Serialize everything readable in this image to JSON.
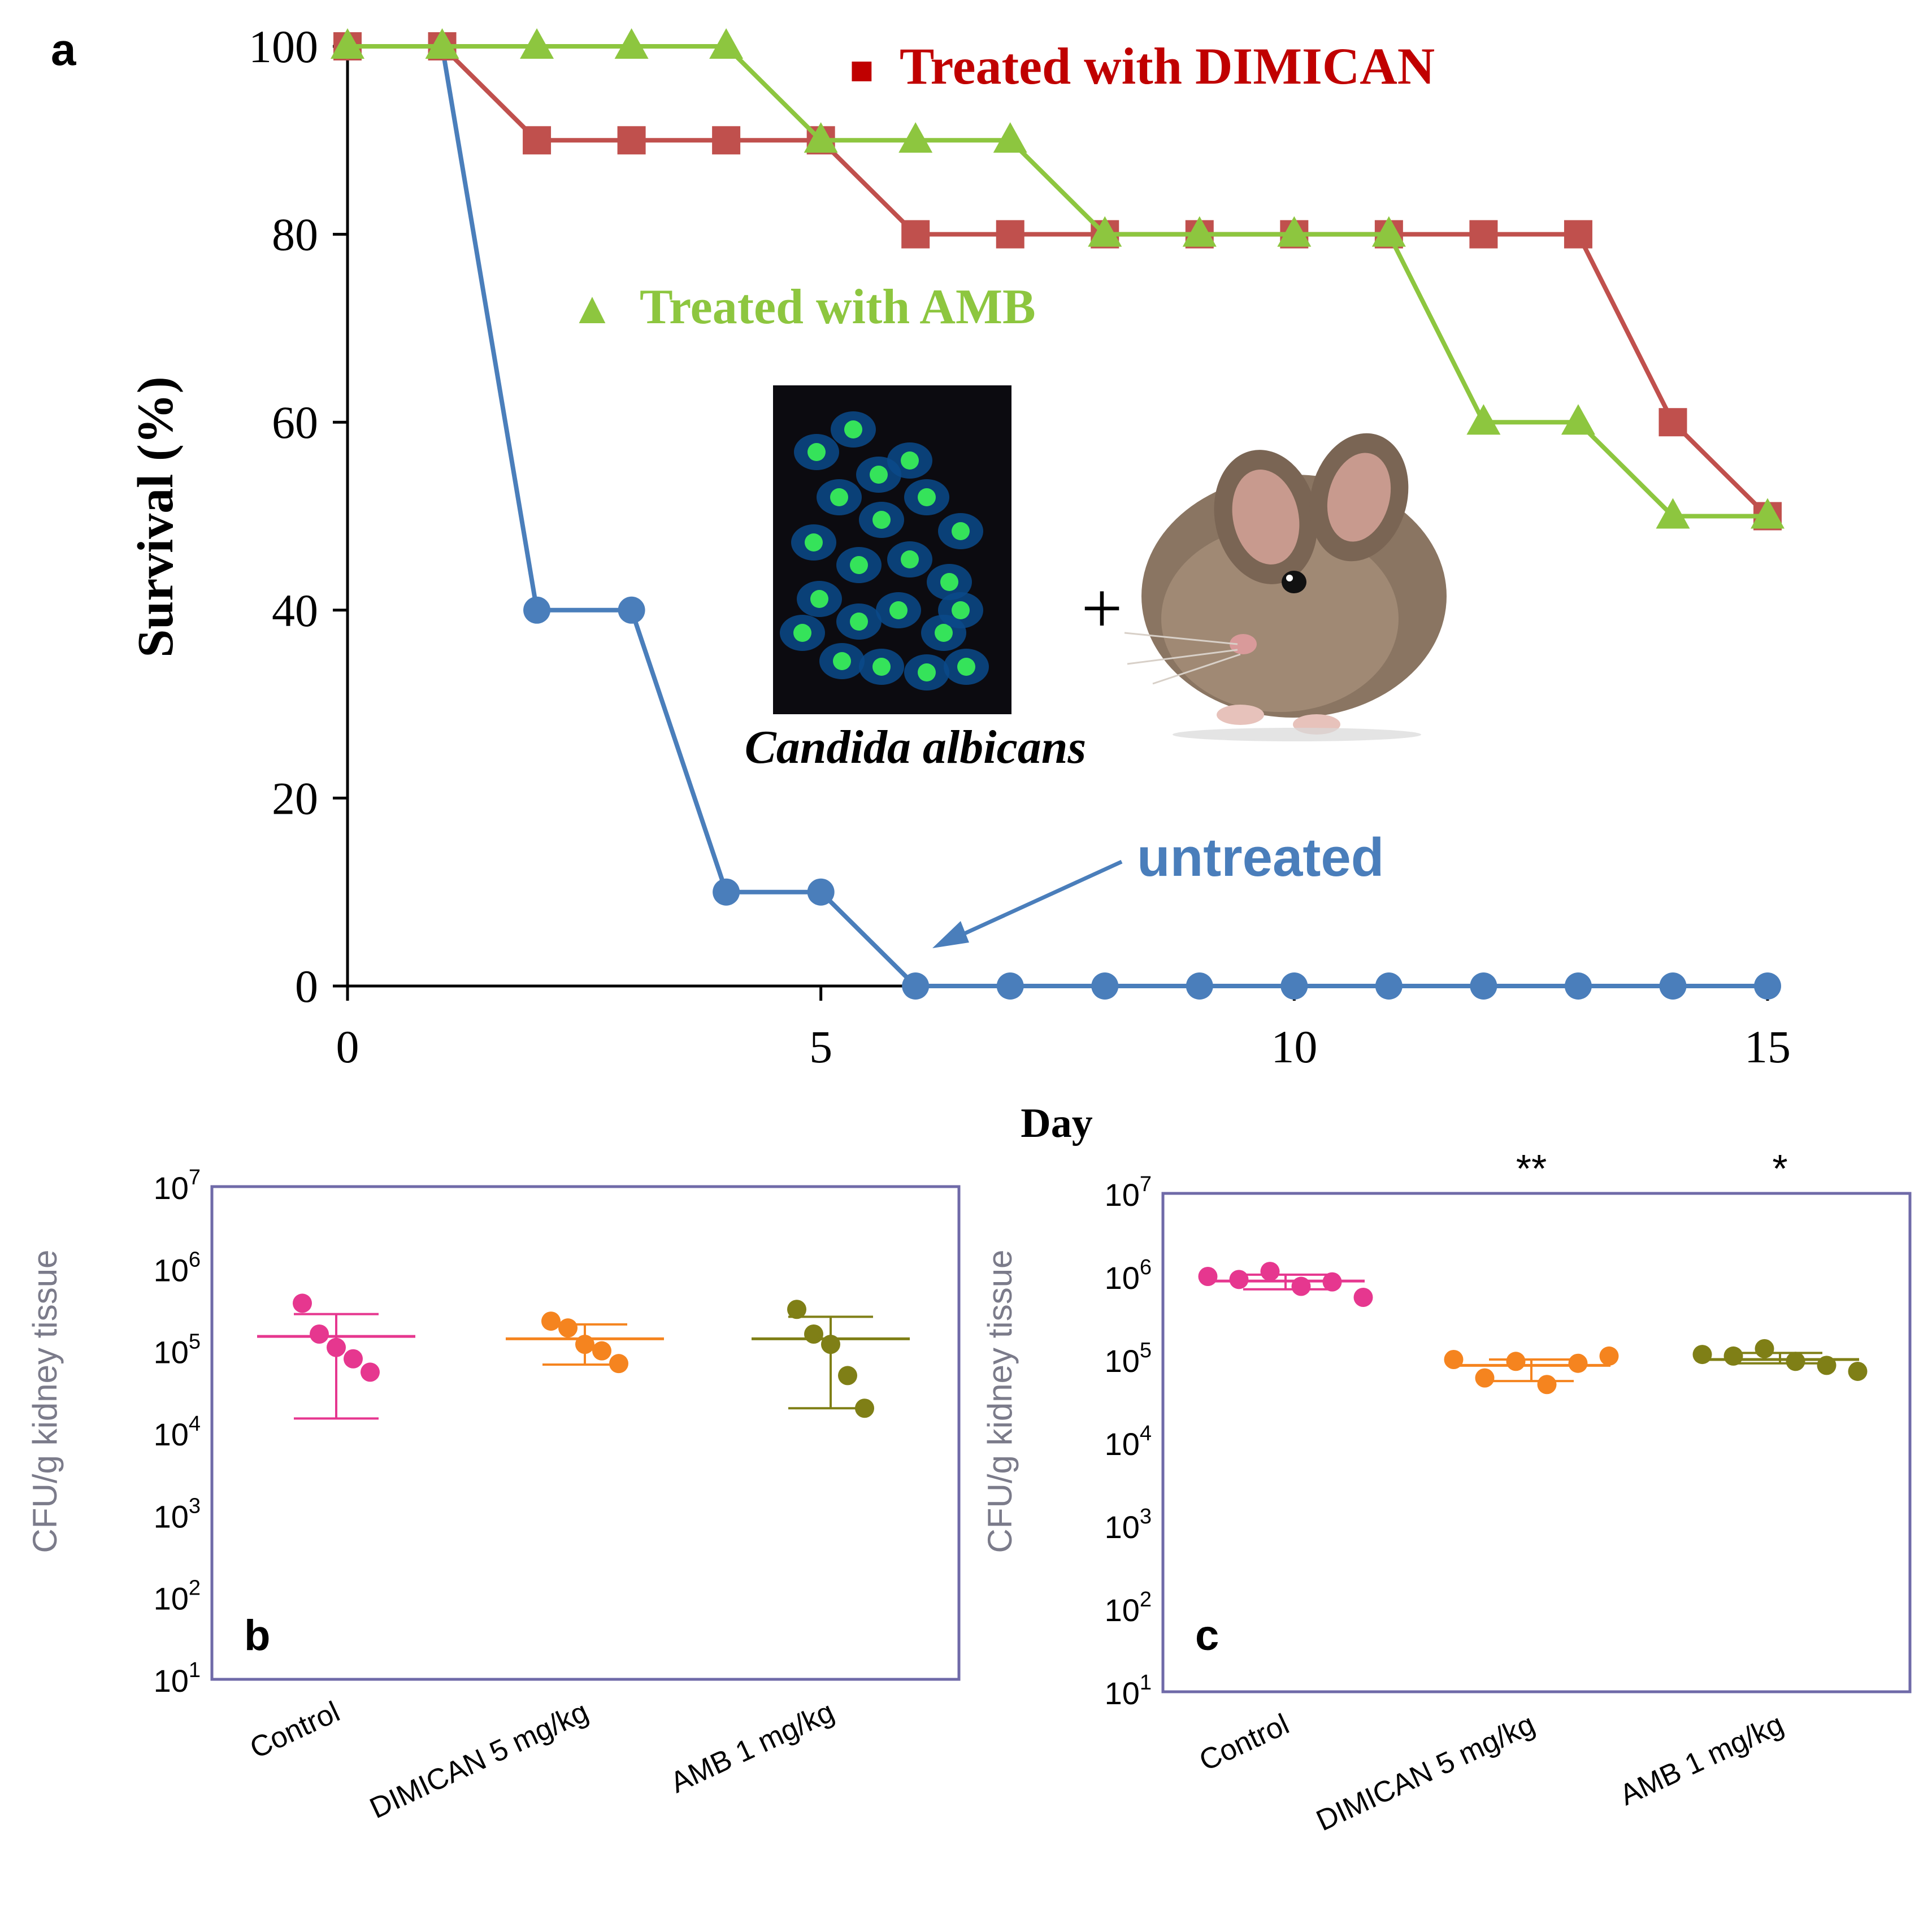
{
  "panel_a": {
    "letter": "a",
    "inset_caption": "Candida albicans",
    "plus_sign": "+",
    "fluorescence_icon": "fluorescent-yeast-cells-micrograph",
    "mouse_icon": "mouse-illustration"
  },
  "panel_b": {
    "letter": "b"
  },
  "panel_c": {
    "letter": "c"
  },
  "chart_data": [
    {
      "type": "line",
      "title": "",
      "xlabel": "Day",
      "ylabel": "Survival (%)",
      "xlim": [
        0,
        15
      ],
      "ylim": [
        0,
        100
      ],
      "xticks": [
        0,
        5,
        10,
        15
      ],
      "yticks": [
        0,
        20,
        40,
        60,
        80,
        100
      ],
      "x": [
        0,
        1,
        2,
        3,
        4,
        5,
        6,
        7,
        8,
        9,
        10,
        11,
        12,
        13,
        14,
        15
      ],
      "series": [
        {
          "name": "untreated",
          "label": "untreated",
          "color": "#4a7ebb",
          "marker": "circle",
          "values": [
            100,
            100,
            40,
            40,
            10,
            10,
            0,
            0,
            0,
            0,
            0,
            0,
            0,
            0,
            0,
            0
          ]
        },
        {
          "name": "Treated with DIMICAN",
          "label": "Treated with DIMICAN",
          "color": "#c0504d",
          "legend_color": "#c00000",
          "marker": "square",
          "values": [
            100,
            100,
            90,
            90,
            90,
            90,
            80,
            80,
            80,
            80,
            80,
            80,
            80,
            80,
            60,
            50
          ]
        },
        {
          "name": "Treated with AMB",
          "label": "Treated with AMB",
          "color": "#8dc63f",
          "marker": "triangle",
          "values": [
            100,
            100,
            100,
            100,
            100,
            90,
            90,
            90,
            80,
            80,
            80,
            80,
            60,
            60,
            50,
            50
          ]
        }
      ],
      "legend_symbols": {
        "square": "■",
        "triangle": "▲"
      }
    },
    {
      "type": "scatter",
      "panel": "b",
      "ylabel": "CFU/g kidney tissue",
      "yscale": "log",
      "ytick_base": "10",
      "ytick_exponents": [
        "1",
        "2",
        "3",
        "4",
        "5",
        "6",
        "7"
      ],
      "categories": [
        "Control",
        "DIMICAN 5 mg/kg",
        "AMB 1 mg/kg"
      ],
      "groups": [
        {
          "name": "Control",
          "color": "#e6378f",
          "points": [
            380000,
            160000,
            110000,
            80000,
            55000
          ],
          "mean": 150000,
          "err_low": 15000,
          "err_high": 280000
        },
        {
          "name": "DIMICAN 5 mg/kg",
          "color": "#f5841f",
          "points": [
            230000,
            190000,
            120000,
            100000,
            70000
          ],
          "mean": 140000,
          "err_low": 68000,
          "err_high": 210000
        },
        {
          "name": "AMB 1 mg/kg",
          "color": "#7f7f16",
          "points": [
            320000,
            160000,
            120000,
            50000,
            20000
          ],
          "mean": 140000,
          "err_low": 20000,
          "err_high": 260000
        }
      ]
    },
    {
      "type": "scatter",
      "panel": "c",
      "ylabel": "CFU/g kidney tissue",
      "yscale": "log",
      "ytick_base": "10",
      "ytick_exponents": [
        "1",
        "2",
        "3",
        "4",
        "5",
        "6",
        "7"
      ],
      "categories": [
        "Control",
        "DIMICAN 5 mg/kg",
        "AMB 1 mg/kg"
      ],
      "significance": [
        "",
        "**",
        "*"
      ],
      "groups": [
        {
          "name": "Control",
          "color": "#e6378f",
          "points": [
            1000000,
            920000,
            1150000,
            760000,
            860000,
            560000
          ],
          "mean": 880000,
          "err_low": 700000,
          "err_high": 1050000
        },
        {
          "name": "DIMICAN 5 mg/kg",
          "color": "#f5841f",
          "points": [
            100000,
            60000,
            95000,
            50000,
            90000,
            110000
          ],
          "mean": 85000,
          "err_low": 55000,
          "err_high": 100000
        },
        {
          "name": "AMB 1 mg/kg",
          "color": "#7f7f16",
          "points": [
            115000,
            110000,
            135000,
            95000,
            85000,
            72000
          ],
          "mean": 100000,
          "err_low": 90000,
          "err_high": 120000
        }
      ]
    }
  ]
}
